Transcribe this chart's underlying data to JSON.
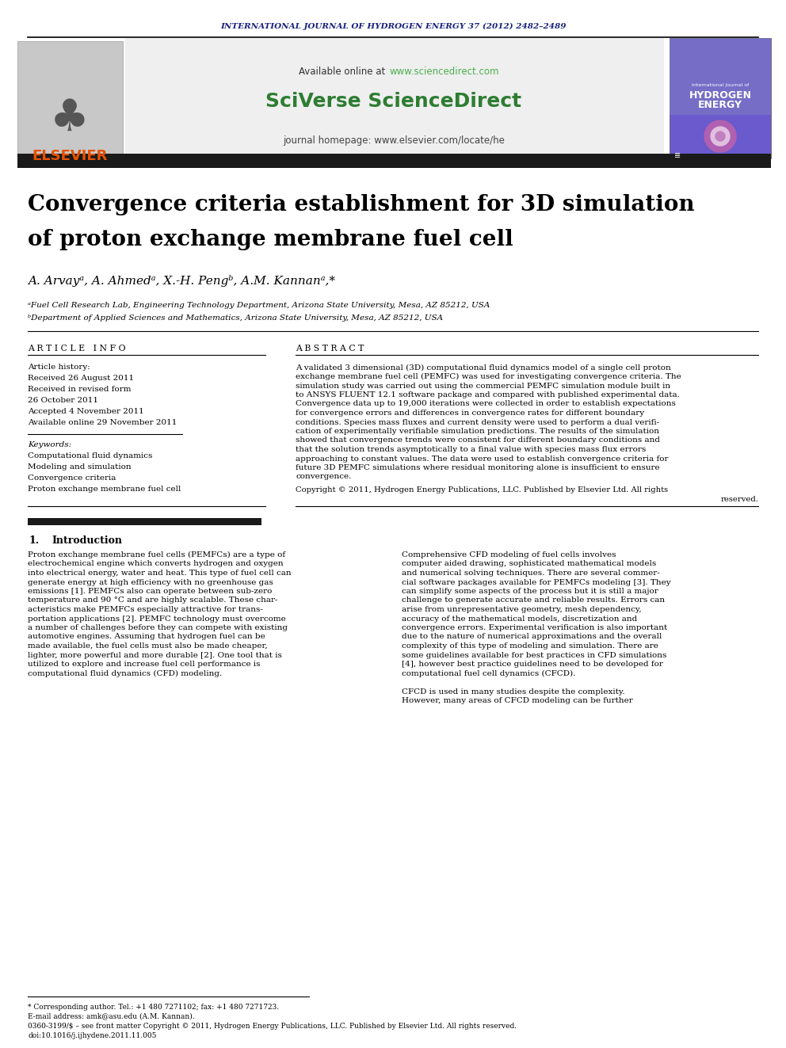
{
  "journal_header": "INTERNATIONAL JOURNAL OF HYDROGEN ENERGY 37 (2012) 2482–2489",
  "journal_header_color": "#1a237e",
  "available_online_text": "Available online at ",
  "sciencedirect_url": "www.sciencedirect.com",
  "sciencedirect_url_color": "#4CAF50",
  "sciverse_text": "SciVerse ScienceDirect",
  "sciverse_color": "#2e7d32",
  "journal_homepage": "journal homepage: www.elsevier.com/locate/he",
  "elsevier_color": "#E65100",
  "black_bar_color": "#1a1a1a",
  "title_line1": "Convergence criteria establishment for 3D simulation",
  "title_line2": "of proton exchange membrane fuel cell",
  "authors": "A. Arvayᵃ, A. Ahmedᵃ, X.-H. Pengᵇ, A.M. Kannanᵃ,*",
  "affil_a": "ᵃFuel Cell Research Lab, Engineering Technology Department, Arizona State University, Mesa, AZ 85212, USA",
  "affil_b": "ᵇDepartment of Applied Sciences and Mathematics, Arizona State University, Mesa, AZ 85212, USA",
  "article_info_header": "A R T I C L E   I N F O",
  "abstract_header": "A B S T R A C T",
  "article_history_label": "Article history:",
  "received1": "Received 26 August 2011",
  "received2": "Received in revised form",
  "received2b": "26 October 2011",
  "accepted": "Accepted 4 November 2011",
  "available": "Available online 29 November 2011",
  "keywords_label": "Keywords:",
  "keyword1": "Computational fluid dynamics",
  "keyword2": "Modeling and simulation",
  "keyword3": "Convergence criteria",
  "keyword4": "Proton exchange membrane fuel cell",
  "copyright_text": "Copyright © 2011, Hydrogen Energy Publications, LLC. Published by Elsevier Ltd. All rights",
  "copyright_text2": "reserved.",
  "section1_num": "1.",
  "section1_title": "Introduction",
  "footnote_star": "* Corresponding author. Tel.: +1 480 7271102; fax: +1 480 7271723.",
  "footnote_email": "E-mail address: amk@asu.edu (A.M. Kannan).",
  "footnote_issn": "0360-3199/$ – see front matter Copyright © 2011, Hydrogen Energy Publications, LLC. Published by Elsevier Ltd. All rights reserved.",
  "footnote_doi": "doi:10.1016/j.ijhydene.2011.11.005",
  "bg_color": "#ffffff",
  "text_color": "#000000"
}
